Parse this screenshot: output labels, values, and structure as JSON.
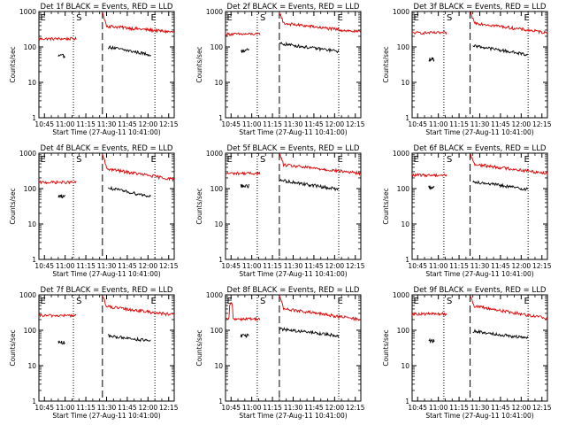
{
  "figure": {
    "background": "#ffffff",
    "events_color": "#000000",
    "lld_color": "#e00000"
  },
  "chart_data": [
    {
      "type": "line",
      "title": "Det 1f BLACK = Events, RED = LLD",
      "xlabel": "Start Time (27-Aug-11 10:41:00)",
      "ylabel": "Counts/sec",
      "x_ticks": [
        "10:45",
        "11:00",
        "11:15",
        "11:30",
        "11:45",
        "12:00",
        "12:15"
      ],
      "y_ticks": [
        "1",
        "10",
        "100",
        "1000"
      ],
      "y_scale": "log",
      "ylim": [
        1,
        1000
      ],
      "x_range_minutes": [
        41,
        139
      ],
      "dotted_lines_minutes": [
        66,
        125
      ],
      "dashed_line_minutes": [
        87
      ],
      "markers": [
        {
          "label": "E",
          "at_minutes": 42
        },
        {
          "label": "S",
          "at_minutes": 68
        },
        {
          "label": "E",
          "at_minutes": 122
        }
      ],
      "lld_level": {
        "pre": 170,
        "peak": 1000,
        "post_start": 400,
        "post_end": 260
      },
      "events_level": {
        "pre": 55,
        "post_start": 100,
        "post_end": 60,
        "pre_span": [
          55,
          60
        ],
        "post_span": [
          91,
          122
        ]
      }
    },
    {
      "type": "line",
      "title": "Det 2f BLACK = Events, RED = LLD",
      "xlabel": "Start Time (27-Aug-11 10:41:00)",
      "ylabel": "Counts/sec",
      "x_ticks": [
        "10:45",
        "11:00",
        "11:15",
        "11:30",
        "11:45",
        "12:00",
        "12:15"
      ],
      "y_ticks": [
        "1",
        "10",
        "100",
        "1000"
      ],
      "y_scale": "log",
      "ylim": [
        1,
        1000
      ],
      "x_range_minutes": [
        41,
        139
      ],
      "dotted_lines_minutes": [
        64,
        123
      ],
      "dashed_line_minutes": [
        80
      ],
      "markers": [
        {
          "label": "E",
          "at_minutes": 42
        },
        {
          "label": "S",
          "at_minutes": 66
        },
        {
          "label": "E",
          "at_minutes": 122
        }
      ],
      "lld_level": {
        "pre": 230,
        "peak": 1000,
        "post_start": 480,
        "post_end": 260
      },
      "events_level": {
        "pre": 80,
        "post_start": 125,
        "post_end": 75,
        "pre_span": [
          52,
          58
        ],
        "post_span": [
          80,
          123
        ]
      }
    },
    {
      "type": "line",
      "title": "Det 3f BLACK = Events, RED = LLD",
      "xlabel": "Start Time (27-Aug-11 10:41:00)",
      "ylabel": "Counts/sec",
      "x_ticks": [
        "10:45",
        "11:00",
        "11:15",
        "11:30",
        "11:45",
        "12:00",
        "12:15"
      ],
      "y_ticks": [
        "1",
        "10",
        "100",
        "1000"
      ],
      "y_scale": "log",
      "ylim": [
        1,
        1000
      ],
      "x_range_minutes": [
        41,
        139
      ],
      "dotted_lines_minutes": [
        64,
        125
      ],
      "dashed_line_minutes": [
        83
      ],
      "markers": [
        {
          "label": "E",
          "at_minutes": 42
        },
        {
          "label": "S",
          "at_minutes": 66
        },
        {
          "label": "E",
          "at_minutes": 122
        }
      ],
      "lld_level": {
        "pre": 250,
        "peak": 1000,
        "post_start": 500,
        "post_end": 250
      },
      "events_level": {
        "pre": 45,
        "post_start": 110,
        "post_end": 60,
        "pre_span": [
          53,
          57
        ],
        "post_span": [
          85,
          125
        ]
      }
    },
    {
      "type": "line",
      "title": "Det 4f BLACK = Events, RED = LLD",
      "xlabel": "Start Time (27-Aug-11 10:41:00)",
      "ylabel": "Counts/sec",
      "x_ticks": [
        "10:45",
        "11:00",
        "11:15",
        "11:30",
        "11:45",
        "12:00",
        "12:15"
      ],
      "y_ticks": [
        "1",
        "10",
        "100",
        "1000"
      ],
      "y_scale": "log",
      "ylim": [
        1,
        1000
      ],
      "x_range_minutes": [
        41,
        139
      ],
      "dotted_lines_minutes": [
        66,
        125
      ],
      "dashed_line_minutes": [
        87
      ],
      "markers": [
        {
          "label": "E",
          "at_minutes": 42
        },
        {
          "label": "S",
          "at_minutes": 68
        },
        {
          "label": "E",
          "at_minutes": 122
        }
      ],
      "lld_level": {
        "pre": 150,
        "peak": 1000,
        "post_start": 380,
        "post_end": 180
      },
      "events_level": {
        "pre": 62,
        "post_start": 105,
        "post_end": 60,
        "pre_span": [
          55,
          60
        ],
        "post_span": [
          91,
          122
        ]
      }
    },
    {
      "type": "line",
      "title": "Det 5f BLACK = Events, RED = LLD",
      "xlabel": "Start Time (27-Aug-11 10:41:00)",
      "ylabel": "Counts/sec",
      "x_ticks": [
        "10:45",
        "11:00",
        "11:15",
        "11:30",
        "11:45",
        "12:00",
        "12:15"
      ],
      "y_ticks": [
        "1",
        "10",
        "100",
        "1000"
      ],
      "y_scale": "log",
      "ylim": [
        1,
        1000
      ],
      "x_range_minutes": [
        41,
        139
      ],
      "dotted_lines_minutes": [
        64,
        123
      ],
      "dashed_line_minutes": [
        80
      ],
      "markers": [
        {
          "label": "E",
          "at_minutes": 42
        },
        {
          "label": "S",
          "at_minutes": 66
        },
        {
          "label": "E",
          "at_minutes": 122
        }
      ],
      "lld_level": {
        "pre": 270,
        "peak": 1000,
        "post_start": 480,
        "post_end": 270
      },
      "events_level": {
        "pre": 120,
        "post_start": 175,
        "post_end": 95,
        "pre_span": [
          52,
          58
        ],
        "post_span": [
          80,
          123
        ]
      }
    },
    {
      "type": "line",
      "title": "Det 6f BLACK = Events, RED = LLD",
      "xlabel": "Start Time (27-Aug-11 10:41:00)",
      "ylabel": "Counts/sec",
      "x_ticks": [
        "10:45",
        "11:00",
        "11:15",
        "11:30",
        "11:45",
        "12:00",
        "12:15"
      ],
      "y_ticks": [
        "1",
        "10",
        "100",
        "1000"
      ],
      "y_scale": "log",
      "ylim": [
        1,
        1000
      ],
      "x_range_minutes": [
        41,
        139
      ],
      "dotted_lines_minutes": [
        64,
        125
      ],
      "dashed_line_minutes": [
        83
      ],
      "markers": [
        {
          "label": "E",
          "at_minutes": 42
        },
        {
          "label": "S",
          "at_minutes": 66
        },
        {
          "label": "E",
          "at_minutes": 122
        }
      ],
      "lld_level": {
        "pre": 240,
        "peak": 1000,
        "post_start": 500,
        "post_end": 270
      },
      "events_level": {
        "pre": 110,
        "post_start": 160,
        "post_end": 95,
        "pre_span": [
          53,
          57
        ],
        "post_span": [
          85,
          125
        ]
      }
    },
    {
      "type": "line",
      "title": "Det 7f BLACK = Events, RED = LLD",
      "xlabel": "Start Time (27-Aug-11 10:41:00)",
      "ylabel": "Counts/sec",
      "x_ticks": [
        "10:45",
        "11:00",
        "11:15",
        "11:30",
        "11:45",
        "12:00",
        "12:15"
      ],
      "y_ticks": [
        "1",
        "10",
        "100",
        "1000"
      ],
      "y_scale": "log",
      "ylim": [
        1,
        1000
      ],
      "x_range_minutes": [
        41,
        139
      ],
      "dotted_lines_minutes": [
        66,
        125
      ],
      "dashed_line_minutes": [
        87
      ],
      "markers": [
        {
          "label": "E",
          "at_minutes": 42
        },
        {
          "label": "S",
          "at_minutes": 68
        },
        {
          "label": "E",
          "at_minutes": 122
        }
      ],
      "lld_level": {
        "pre": 260,
        "peak": 1000,
        "post_start": 480,
        "post_end": 270
      },
      "events_level": {
        "pre": 45,
        "post_start": 70,
        "post_end": 50,
        "pre_span": [
          55,
          60
        ],
        "post_span": [
          91,
          122
        ]
      }
    },
    {
      "type": "line",
      "title": "Det 8f BLACK = Events, RED = LLD",
      "xlabel": "Start Time (27-Aug-11 10:41:00)",
      "ylabel": "Counts/sec",
      "x_ticks": [
        "10:45",
        "11:00",
        "11:15",
        "11:30",
        "11:45",
        "12:00",
        "12:15"
      ],
      "y_ticks": [
        "1",
        "10",
        "100",
        "1000"
      ],
      "y_scale": "log",
      "ylim": [
        1,
        1000
      ],
      "x_range_minutes": [
        41,
        139
      ],
      "dotted_lines_minutes": [
        64,
        123
      ],
      "dashed_line_minutes": [
        80
      ],
      "markers": [
        {
          "label": "E",
          "at_minutes": 42
        },
        {
          "label": "S",
          "at_minutes": 66
        },
        {
          "label": "E",
          "at_minutes": 122
        }
      ],
      "lld_level": {
        "pre": 210,
        "peak": 1000,
        "post_start": 420,
        "post_end": 200
      },
      "events_level": {
        "pre": 70,
        "post_start": 110,
        "post_end": 70,
        "pre_span": [
          52,
          58
        ],
        "post_span": [
          80,
          123
        ]
      },
      "lld_pre_spike": {
        "at_minutes": 45,
        "value": 650
      }
    },
    {
      "type": "line",
      "title": "Det 9f BLACK = Events, RED = LLD",
      "xlabel": "Start Time (27-Aug-11 10:41:00)",
      "ylabel": "Counts/sec",
      "x_ticks": [
        "10:45",
        "11:00",
        "11:15",
        "11:30",
        "11:45",
        "12:00",
        "12:15"
      ],
      "y_ticks": [
        "1",
        "10",
        "100",
        "1000"
      ],
      "y_scale": "log",
      "ylim": [
        1,
        1000
      ],
      "x_range_minutes": [
        41,
        139
      ],
      "dotted_lines_minutes": [
        64,
        125
      ],
      "dashed_line_minutes": [
        83
      ],
      "markers": [
        {
          "label": "E",
          "at_minutes": 42
        },
        {
          "label": "S",
          "at_minutes": 66
        },
        {
          "label": "E",
          "at_minutes": 122
        }
      ],
      "lld_level": {
        "pre": 290,
        "peak": 1000,
        "post_start": 500,
        "post_end": 220
      },
      "events_level": {
        "pre": 50,
        "post_start": 95,
        "post_end": 60,
        "pre_span": [
          53,
          57
        ],
        "post_span": [
          85,
          125
        ]
      }
    }
  ]
}
